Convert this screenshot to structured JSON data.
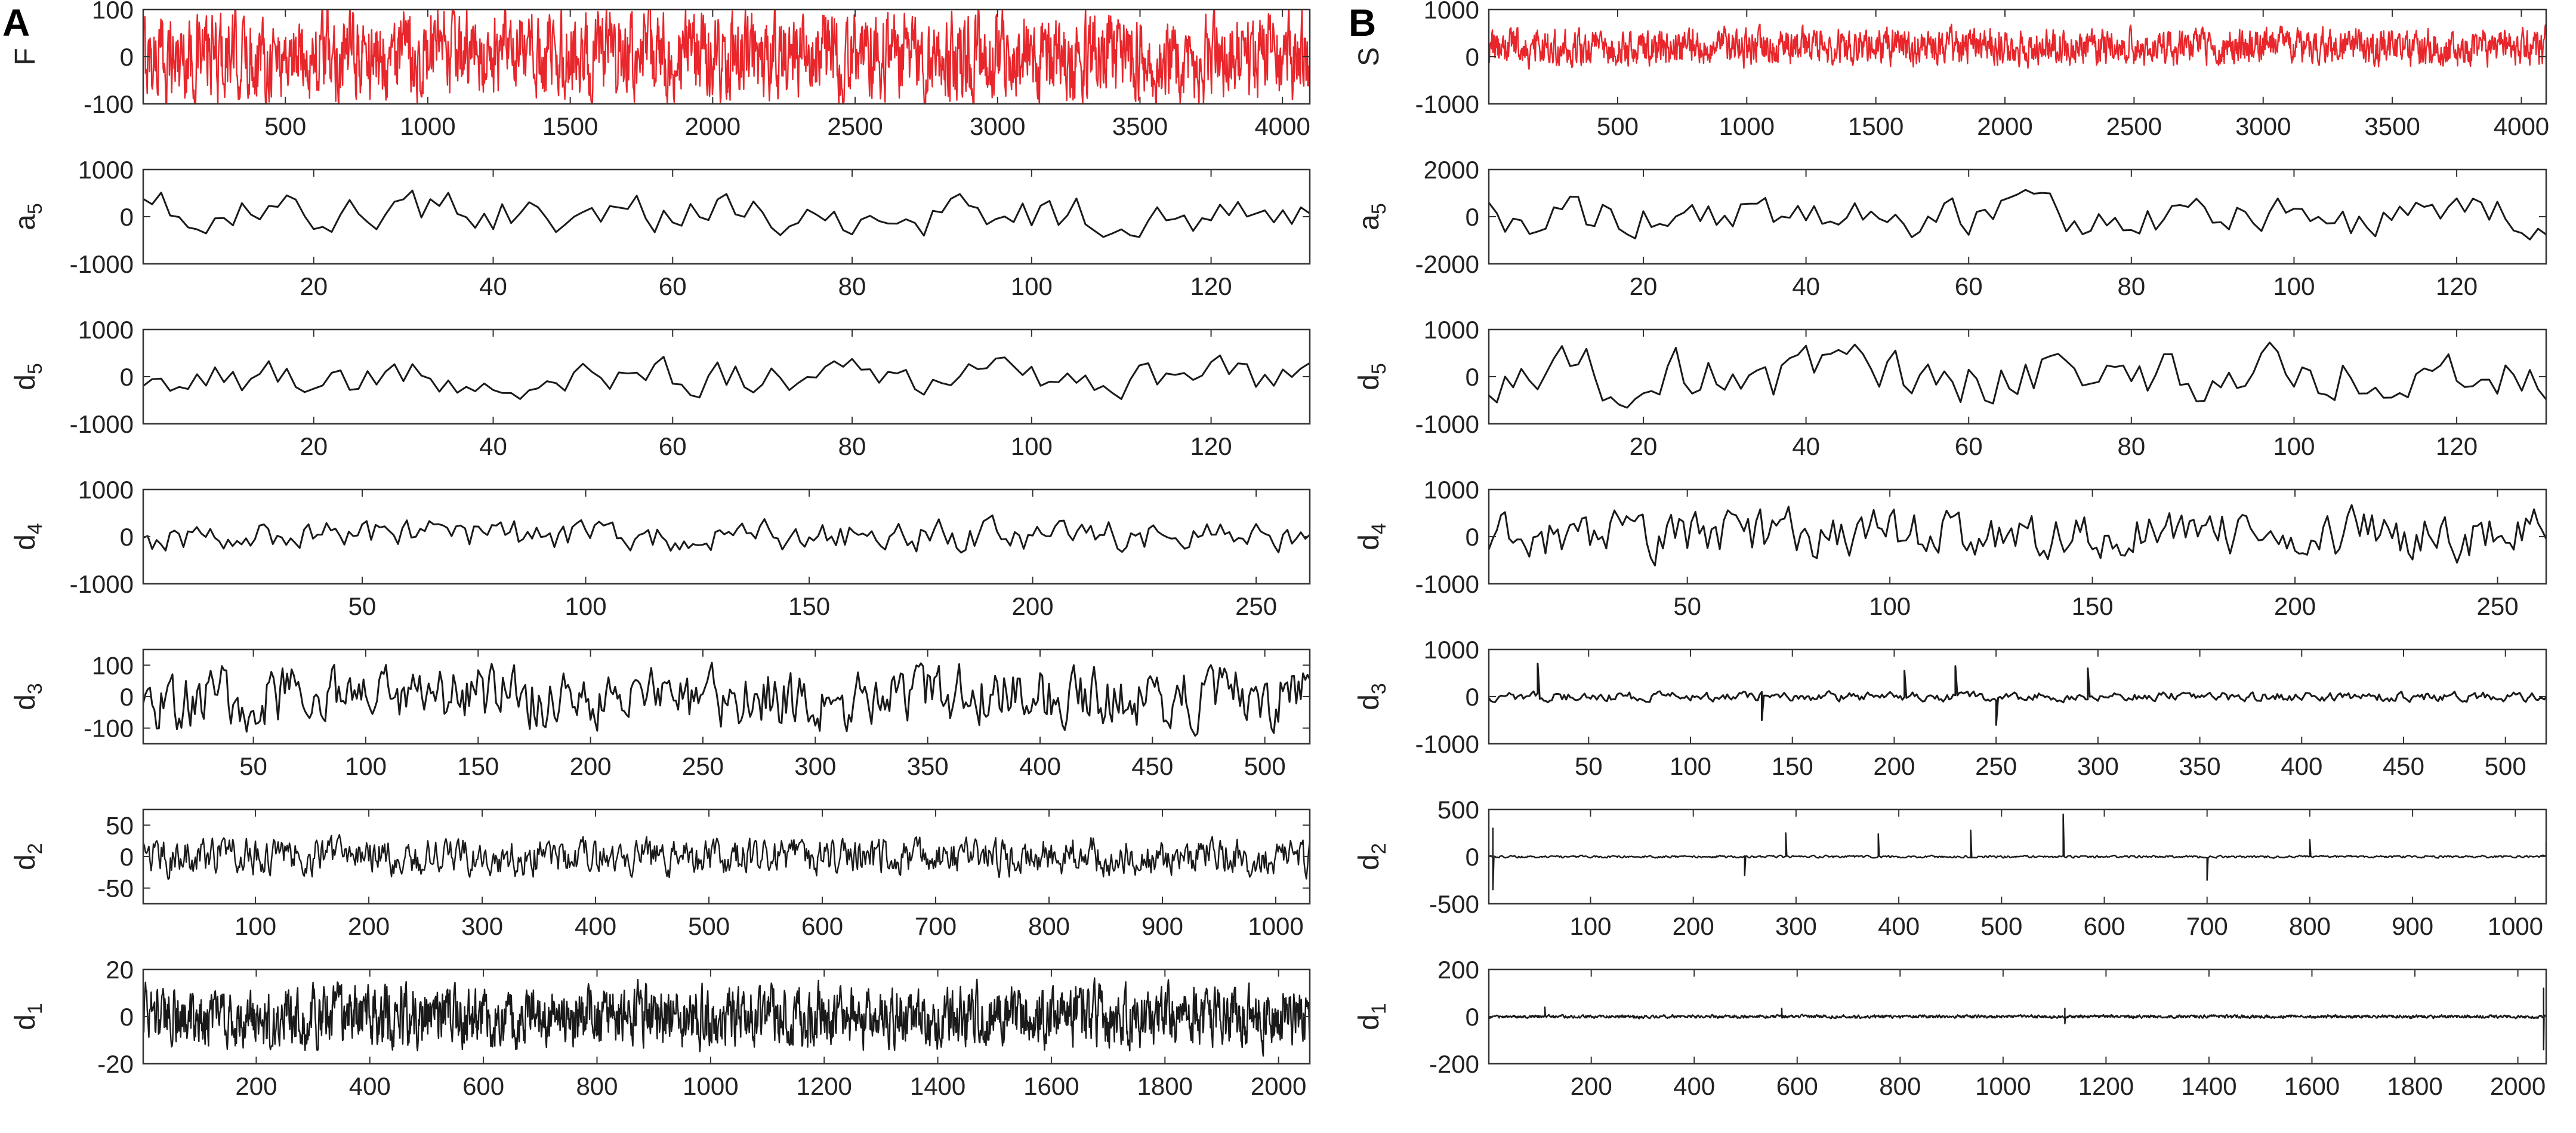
{
  "figure": {
    "panel_labels": [
      "A",
      "B"
    ],
    "colors": {
      "signal": "#e8262b",
      "coefficient": "#1a1a1a",
      "axis": "#333333",
      "text": "#222222"
    },
    "signal_length": 4096,
    "levels": [
      "a_5",
      "d_5",
      "d_4",
      "d_3",
      "d_2",
      "d_1"
    ]
  },
  "chart_data": [
    {
      "type": "line",
      "panel": "A",
      "ylabel_main": "F",
      "ylabel_sub": "",
      "color": "#e8262b",
      "n_points": 4096,
      "xlim": [
        1,
        4096
      ],
      "ylim": [
        -100,
        100
      ],
      "xticks": [
        500,
        1000,
        1500,
        2000,
        2500,
        3000,
        3500,
        4000
      ],
      "yticks": [
        -100,
        0,
        100
      ],
      "series": [
        {
          "approx_range": [
            -110,
            110
          ],
          "spikes": []
        }
      ]
    },
    {
      "type": "line",
      "panel": "A",
      "ylabel_main": "a",
      "ylabel_sub": "5",
      "color": "#1a1a1a",
      "n_points": 131,
      "xlim": [
        1,
        131
      ],
      "ylim": [
        -1000,
        1000
      ],
      "xticks": [
        20,
        40,
        60,
        80,
        100,
        120
      ],
      "yticks": [
        -1000,
        0,
        1000
      ],
      "series": [
        {
          "approx_range": [
            -500,
            600
          ],
          "spikes": []
        }
      ]
    },
    {
      "type": "line",
      "panel": "A",
      "ylabel_main": "d",
      "ylabel_sub": "5",
      "color": "#1a1a1a",
      "n_points": 131,
      "xlim": [
        1,
        131
      ],
      "ylim": [
        -1000,
        1000
      ],
      "xticks": [
        20,
        40,
        60,
        80,
        100,
        120
      ],
      "yticks": [
        -1000,
        0,
        1000
      ],
      "series": [
        {
          "approx_range": [
            -500,
            450
          ],
          "spikes": []
        }
      ]
    },
    {
      "type": "line",
      "panel": "A",
      "ylabel_main": "d",
      "ylabel_sub": "4",
      "color": "#1a1a1a",
      "n_points": 262,
      "xlim": [
        1,
        262
      ],
      "ylim": [
        -1000,
        1000
      ],
      "xticks": [
        50,
        100,
        150,
        200,
        250
      ],
      "yticks": [
        -1000,
        0,
        1000
      ],
      "series": [
        {
          "approx_range": [
            -400,
            450
          ],
          "spikes": []
        }
      ]
    },
    {
      "type": "line",
      "panel": "A",
      "ylabel_main": "d",
      "ylabel_sub": "3",
      "color": "#1a1a1a",
      "n_points": 520,
      "xlim": [
        1,
        520
      ],
      "ylim": [
        -150,
        150
      ],
      "xticks": [
        50,
        100,
        150,
        200,
        250,
        300,
        350,
        400,
        450,
        500
      ],
      "yticks": [
        -100,
        0,
        100
      ],
      "series": [
        {
          "approx_range": [
            -120,
            120
          ],
          "spikes": []
        }
      ]
    },
    {
      "type": "line",
      "panel": "A",
      "ylabel_main": "d",
      "ylabel_sub": "2",
      "color": "#1a1a1a",
      "n_points": 1030,
      "xlim": [
        1,
        1030
      ],
      "ylim": [
        -75,
        75
      ],
      "xticks": [
        100,
        200,
        300,
        400,
        500,
        600,
        700,
        800,
        900,
        1000
      ],
      "yticks": [
        -50,
        0,
        50
      ],
      "series": [
        {
          "approx_range": [
            -35,
            35
          ],
          "spikes": []
        }
      ]
    },
    {
      "type": "line",
      "panel": "A",
      "ylabel_main": "d",
      "ylabel_sub": "1",
      "color": "#1a1a1a",
      "n_points": 2055,
      "xlim": [
        1,
        2055
      ],
      "ylim": [
        -20,
        20
      ],
      "xticks": [
        200,
        400,
        600,
        800,
        1000,
        1200,
        1400,
        1600,
        1800,
        2000
      ],
      "yticks": [
        -20,
        0,
        20
      ],
      "series": [
        {
          "approx_range": [
            -15,
            15
          ],
          "spikes": []
        }
      ]
    },
    {
      "type": "line",
      "panel": "B",
      "ylabel_main": "S",
      "ylabel_sub": "",
      "color": "#e8262b",
      "n_points": 4096,
      "xlim": [
        1,
        4096
      ],
      "ylim": [
        -1000,
        1000
      ],
      "xticks": [
        500,
        1000,
        1500,
        2000,
        2500,
        3000,
        3500,
        4000
      ],
      "yticks": [
        -1000,
        0,
        1000
      ],
      "series": [
        {
          "approx_range": [
            -250,
            650
          ],
          "spikes": []
        }
      ]
    },
    {
      "type": "line",
      "panel": "B",
      "ylabel_main": "a",
      "ylabel_sub": "5",
      "color": "#1a1a1a",
      "n_points": 131,
      "xlim": [
        1,
        131
      ],
      "ylim": [
        -2000,
        2000
      ],
      "xticks": [
        20,
        40,
        60,
        80,
        100,
        120
      ],
      "yticks": [
        -2000,
        0,
        2000
      ],
      "series": [
        {
          "approx_range": [
            -1200,
            1100
          ],
          "spikes": []
        }
      ]
    },
    {
      "type": "line",
      "panel": "B",
      "ylabel_main": "d",
      "ylabel_sub": "5",
      "color": "#1a1a1a",
      "n_points": 131,
      "xlim": [
        1,
        131
      ],
      "ylim": [
        -1000,
        1000
      ],
      "xticks": [
        20,
        40,
        60,
        80,
        100,
        120
      ],
      "yticks": [
        -1000,
        0,
        1000
      ],
      "series": [
        {
          "approx_range": [
            -750,
            750
          ],
          "spikes": []
        }
      ]
    },
    {
      "type": "line",
      "panel": "B",
      "ylabel_main": "d",
      "ylabel_sub": "4",
      "color": "#1a1a1a",
      "n_points": 262,
      "xlim": [
        1,
        262
      ],
      "ylim": [
        -1000,
        1000
      ],
      "xticks": [
        50,
        100,
        150,
        200,
        250
      ],
      "yticks": [
        -1000,
        0,
        1000
      ],
      "series": [
        {
          "approx_range": [
            -600,
            700
          ],
          "spikes": []
        }
      ]
    },
    {
      "type": "line",
      "panel": "B",
      "ylabel_main": "d",
      "ylabel_sub": "3",
      "color": "#1a1a1a",
      "n_points": 520,
      "xlim": [
        1,
        520
      ],
      "ylim": [
        -1000,
        1000
      ],
      "xticks": [
        50,
        100,
        150,
        200,
        250,
        300,
        350,
        400,
        450,
        500
      ],
      "yticks": [
        -1000,
        0,
        1000
      ],
      "series": [
        {
          "approx_range": [
            -120,
            120
          ],
          "spikes": [
            [
              25,
              700
            ],
            [
              230,
              650
            ],
            [
              295,
              600
            ],
            [
              205,
              550
            ],
            [
              135,
              -500
            ],
            [
              250,
              -600
            ]
          ]
        }
      ]
    },
    {
      "type": "line",
      "panel": "B",
      "ylabel_main": "d",
      "ylabel_sub": "2",
      "color": "#1a1a1a",
      "n_points": 1030,
      "xlim": [
        1,
        1030
      ],
      "ylim": [
        -500,
        500
      ],
      "xticks": [
        100,
        200,
        300,
        400,
        500,
        600,
        700,
        800,
        900,
        1000
      ],
      "yticks": [
        -500,
        0,
        500
      ],
      "series": [
        {
          "approx_range": [
            -15,
            15
          ],
          "spikes": [
            [
              560,
              450
            ],
            [
              5,
              300
            ],
            [
              290,
              250
            ],
            [
              470,
              280
            ],
            [
              380,
              240
            ],
            [
              700,
              -250
            ],
            [
              5,
              -350
            ],
            [
              250,
              -200
            ],
            [
              800,
              180
            ],
            [
              1030,
              150
            ]
          ]
        }
      ]
    },
    {
      "type": "line",
      "panel": "B",
      "ylabel_main": "d",
      "ylabel_sub": "1",
      "color": "#1a1a1a",
      "n_points": 2055,
      "xlim": [
        1,
        2055
      ],
      "ylim": [
        -200,
        200
      ],
      "xticks": [
        200,
        400,
        600,
        800,
        1000,
        1200,
        1400,
        1600,
        1800,
        2000
      ],
      "yticks": [
        -200,
        0,
        200
      ],
      "series": [
        {
          "approx_range": [
            -8,
            8
          ],
          "spikes": [
            [
              2050,
              120
            ],
            [
              110,
              40
            ],
            [
              570,
              35
            ],
            [
              1120,
              35
            ],
            [
              2050,
              -140
            ],
            [
              1120,
              -30
            ]
          ]
        }
      ]
    }
  ]
}
